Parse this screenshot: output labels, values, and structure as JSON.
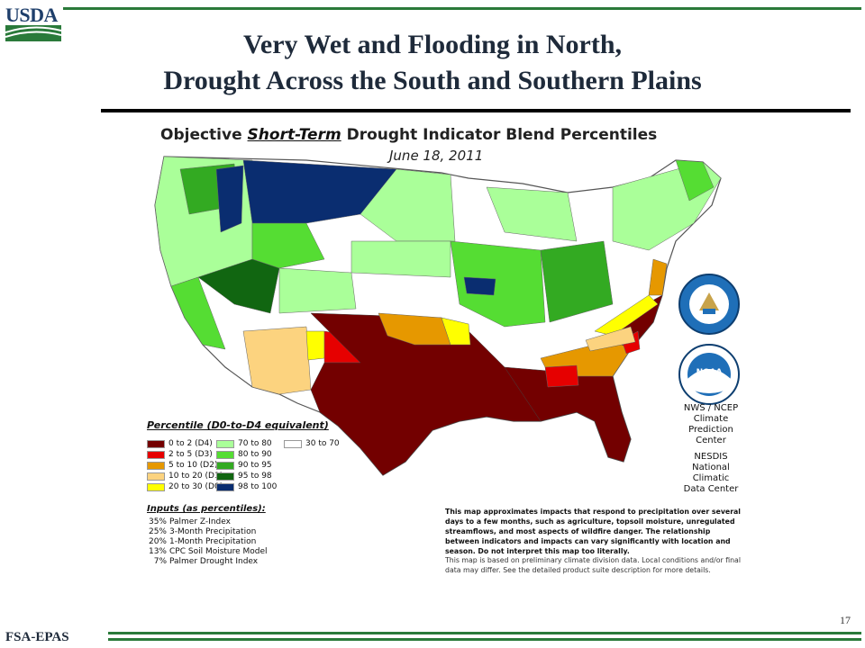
{
  "header": {
    "logo_text": "USDA",
    "title_line1": "Very Wet and Flooding in North,",
    "title_line2": "Drought Across the South and Southern Plains"
  },
  "map": {
    "title_prefix": "Objective ",
    "title_emph": "Short-Term",
    "title_suffix": " Drought Indicator Blend Percentiles",
    "date": "June 18, 2011"
  },
  "legend": {
    "title": "Percentile  (D0-to-D4 equivalent)",
    "items": [
      {
        "label": "0 to 2  (D4)",
        "color": "#730000"
      },
      {
        "label": "2 to 5  (D3)",
        "color": "#e60000"
      },
      {
        "label": "5 to 10  (D2)",
        "color": "#e69800"
      },
      {
        "label": "10 to 20  (D1)",
        "color": "#fcd37f"
      },
      {
        "label": "20 to 30  (D0)",
        "color": "#ffff00"
      },
      {
        "label": "70 to 80",
        "color": "#aaff99"
      },
      {
        "label": "80 to 90",
        "color": "#55dd33"
      },
      {
        "label": "90 to 95",
        "color": "#33aa22"
      },
      {
        "label": "95 to 98",
        "color": "#116611"
      },
      {
        "label": "98 to 100",
        "color": "#0a2d70"
      },
      {
        "label": "30 to 70",
        "color": "#ffffff"
      }
    ]
  },
  "inputs": {
    "title": "Inputs (as percentiles):",
    "items": [
      {
        "pct": "35%",
        "name": "Palmer Z-Index"
      },
      {
        "pct": "25%",
        "name": "3-Month Precipitation"
      },
      {
        "pct": "20%",
        "name": "1-Month Precipitation"
      },
      {
        "pct": "13%",
        "name": "CPC Soil Moisture Model"
      },
      {
        "pct": "7%",
        "name": "Palmer Drought Index"
      }
    ]
  },
  "agencies": {
    "line1": "NWS / NCEP",
    "line2": "Climate",
    "line3": "Prediction",
    "line4": "Center",
    "line5": "NESDIS",
    "line6": "National",
    "line7": "Climatic",
    "line8": "Data Center",
    "noaa_label": "NOAA"
  },
  "notes": {
    "bold": "This map approximates impacts that respond to precipitation over several days to a few months, such as agriculture, topsoil moisture, unregulated streamflows, and most aspects of wildfire danger. The relationship between indicators and impacts can vary significantly with location and season. Do not interpret this map too literally.",
    "plain": "This map is based on preliminary climate division data. Local conditions and/or final data may differ. See the detailed product suite description for more details."
  },
  "footer": {
    "org": "FSA-EPAS",
    "page": "17"
  }
}
